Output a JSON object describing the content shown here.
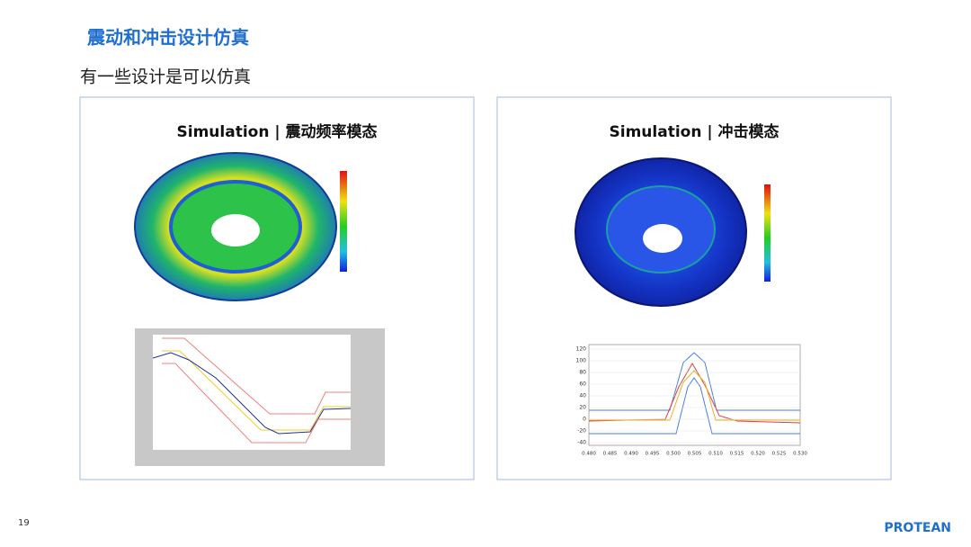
{
  "header": {
    "title": "震动和冲击设计仿真",
    "subtitle": "有一些设计是可以仿真"
  },
  "panels": [
    {
      "title": "Simulation | 震动频率模态"
    },
    {
      "title": "Simulation | 冲击模态",
      "chart": {
        "yticks": [
          "120",
          "100",
          "80",
          "60",
          "40",
          "20",
          "0",
          "-20",
          "-40"
        ],
        "xticks": [
          "0.480",
          "0.485",
          "0.490",
          "0.495",
          "0.500",
          "0.505",
          "0.510",
          "0.515",
          "0.520",
          "0.525",
          "0.530"
        ]
      }
    }
  ],
  "footer": {
    "page": "19",
    "brand": "PROTEAN"
  }
}
